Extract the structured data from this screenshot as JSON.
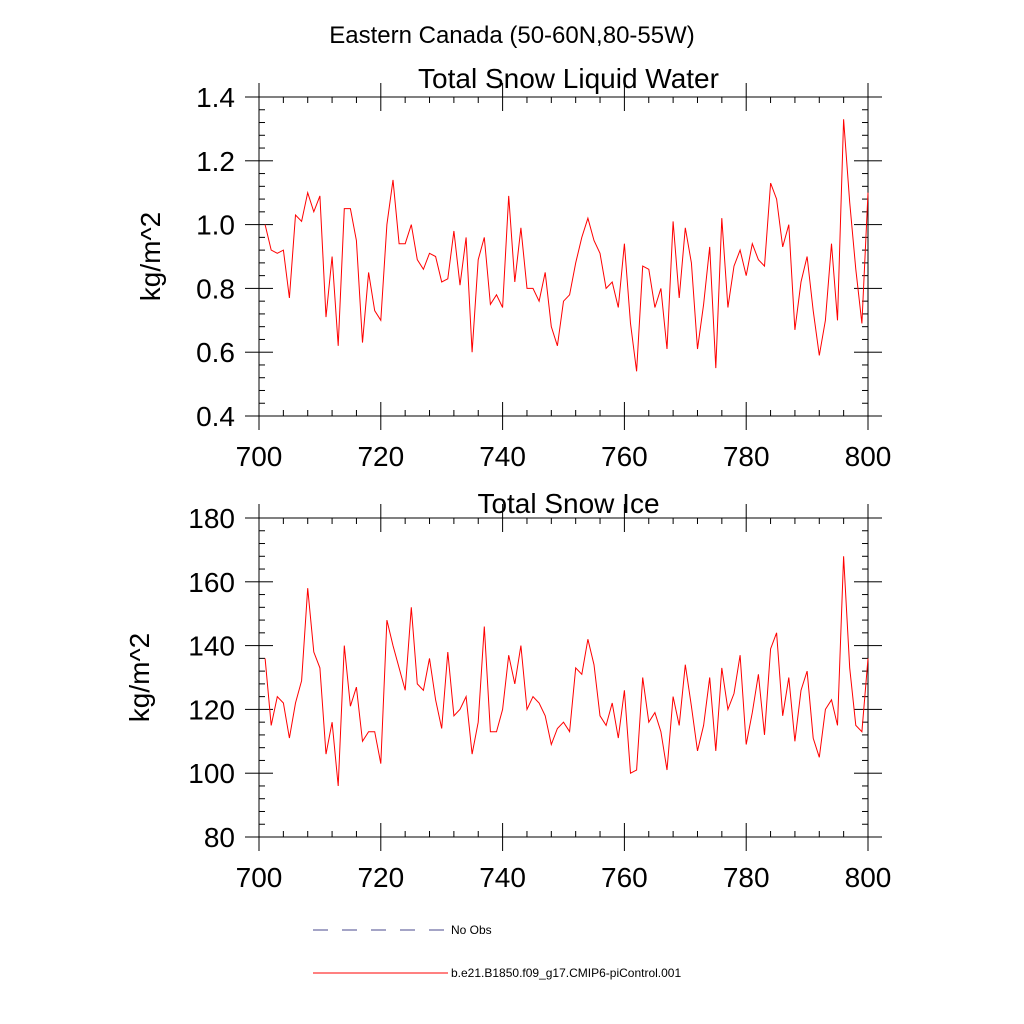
{
  "figure": {
    "title": "Eastern Canada (50-60N,80-55W)"
  },
  "legend": {
    "entries": [
      {
        "label": "No Obs",
        "style": "dashed",
        "color": "#4a4a8c"
      },
      {
        "label": "b.e21.B1850.f09_g17.CMIP6-piControl.001",
        "style": "solid",
        "color": "#ff0000"
      }
    ]
  },
  "chart_data": [
    {
      "type": "line",
      "title": "Total Snow Liquid Water",
      "xlabel": "",
      "ylabel": "kg/m^2",
      "xlim": [
        700,
        800
      ],
      "ylim": [
        0.4,
        1.4
      ],
      "xticks": [
        700,
        720,
        740,
        760,
        780,
        800
      ],
      "xtick_labels": [
        "700",
        "720",
        "740",
        "760",
        "780",
        "800"
      ],
      "yticks": [
        0.4,
        0.6,
        0.8,
        1.0,
        1.2,
        1.4
      ],
      "ytick_labels": [
        "0.4",
        "0.6",
        "0.8",
        "1.0",
        "1.2",
        "1.4"
      ],
      "grid": false,
      "series": [
        {
          "name": "b.e21.B1850.f09_g17.CMIP6-piControl.001",
          "color": "#ff0000",
          "x_start": 701,
          "values": [
            1.0,
            0.92,
            0.91,
            0.92,
            0.77,
            1.03,
            1.01,
            1.1,
            1.04,
            1.09,
            0.71,
            0.9,
            0.62,
            1.05,
            1.05,
            0.95,
            0.63,
            0.85,
            0.73,
            0.7,
            1.0,
            1.14,
            0.94,
            0.94,
            1.0,
            0.89,
            0.86,
            0.91,
            0.9,
            0.82,
            0.83,
            0.98,
            0.81,
            0.96,
            0.6,
            0.89,
            0.96,
            0.75,
            0.78,
            0.74,
            1.09,
            0.82,
            0.99,
            0.8,
            0.8,
            0.76,
            0.85,
            0.68,
            0.62,
            0.76,
            0.78,
            0.88,
            0.96,
            1.02,
            0.95,
            0.91,
            0.8,
            0.82,
            0.74,
            0.94,
            0.69,
            0.54,
            0.87,
            0.86,
            0.74,
            0.8,
            0.61,
            1.01,
            0.77,
            0.99,
            0.88,
            0.61,
            0.75,
            0.93,
            0.55,
            1.02,
            0.74,
            0.87,
            0.92,
            0.84,
            0.94,
            0.89,
            0.87,
            1.13,
            1.08,
            0.93,
            1.0,
            0.67,
            0.82,
            0.9,
            0.73,
            0.59,
            0.7,
            0.94,
            0.7,
            1.33,
            1.07,
            0.86,
            0.69,
            1.1
          ]
        }
      ]
    },
    {
      "type": "line",
      "title": "Total Snow Ice",
      "xlabel": "",
      "ylabel": "kg/m^2",
      "xlim": [
        700,
        800
      ],
      "ylim": [
        80,
        180
      ],
      "xticks": [
        700,
        720,
        740,
        760,
        780,
        800
      ],
      "xtick_labels": [
        "700",
        "720",
        "740",
        "760",
        "780",
        "800"
      ],
      "yticks": [
        80,
        100,
        120,
        140,
        160,
        180
      ],
      "ytick_labels": [
        "80",
        "100",
        "120",
        "140",
        "160",
        "180"
      ],
      "grid": false,
      "series": [
        {
          "name": "b.e21.B1850.f09_g17.CMIP6-piControl.001",
          "color": "#ff0000",
          "x_start": 701,
          "values": [
            136,
            115,
            124,
            122,
            111,
            122,
            129,
            158,
            138,
            133,
            106,
            116,
            96,
            140,
            121,
            127,
            110,
            113,
            113,
            103,
            148,
            140,
            133,
            126,
            152,
            128,
            126,
            136,
            123,
            114,
            138,
            118,
            120,
            124,
            106,
            116,
            146,
            113,
            113,
            120,
            137,
            128,
            140,
            120,
            124,
            122,
            118,
            109,
            114,
            116,
            113,
            133,
            131,
            142,
            134,
            118,
            115,
            122,
            111,
            126,
            100,
            101,
            130,
            116,
            119,
            113,
            101,
            124,
            115,
            134,
            121,
            107,
            115,
            130,
            107,
            133,
            120,
            125,
            137,
            109,
            119,
            131,
            112,
            139,
            144,
            118,
            130,
            110,
            126,
            132,
            111,
            105,
            120,
            123,
            115,
            168,
            133,
            115,
            113,
            136
          ]
        }
      ]
    }
  ]
}
